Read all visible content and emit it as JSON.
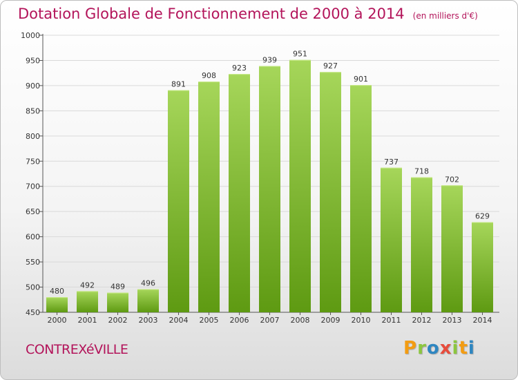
{
  "title": "Dotation Globale de Fonctionnement de 2000 à 2014",
  "subtitle": "(en milliers d'€)",
  "commune": "CONTREXéVILLE",
  "logo": {
    "text": "Proxiti",
    "letters": [
      "P",
      "r",
      "o",
      "x",
      "i",
      "t",
      "i"
    ],
    "colors": [
      "#f39c12",
      "#8cc63f",
      "#2e86c1",
      "#e74c3c",
      "#8cc63f",
      "#f39c12",
      "#2e86c1"
    ]
  },
  "colors": {
    "title": "#b3145a",
    "bar_top": "#a6d65a",
    "bar_bottom": "#5e9a12",
    "grid": "#d9d9d9"
  },
  "chart_data": {
    "type": "bar",
    "categories": [
      "2000",
      "2001",
      "2002",
      "2003",
      "2004",
      "2005",
      "2006",
      "2007",
      "2008",
      "2009",
      "2010",
      "2011",
      "2012",
      "2013",
      "2014"
    ],
    "values": [
      480,
      492,
      489,
      496,
      891,
      908,
      923,
      939,
      951,
      927,
      901,
      737,
      718,
      702,
      629
    ],
    "yticks": [
      450,
      500,
      550,
      600,
      650,
      700,
      750,
      800,
      850,
      900,
      950,
      1000
    ],
    "ylim": [
      450,
      1000
    ],
    "grid": true,
    "xlabel": "",
    "ylabel": ""
  }
}
